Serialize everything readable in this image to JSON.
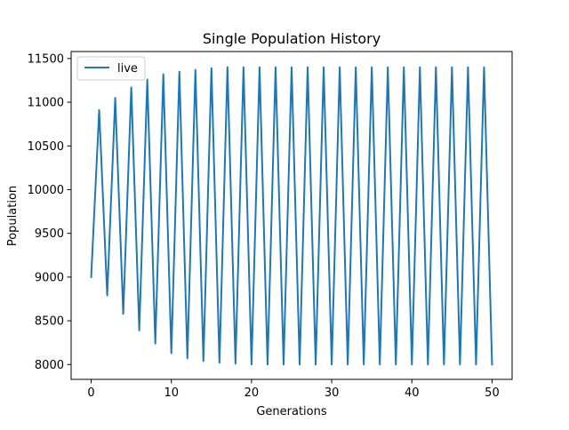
{
  "chart_data": {
    "type": "line",
    "title": "Single Population History",
    "xlabel": "Generations",
    "ylabel": "Population",
    "xlim": [
      -2.5,
      52.5
    ],
    "ylim": [
      7830,
      11580
    ],
    "xticks": [
      0,
      10,
      20,
      30,
      40,
      50
    ],
    "yticks": [
      8000,
      8500,
      9000,
      9500,
      10000,
      10500,
      11000,
      11500
    ],
    "grid": false,
    "legend": {
      "position": "top-left",
      "entries": [
        "live"
      ]
    },
    "series": [
      {
        "name": "live",
        "color": "#1f77b4",
        "x": [
          0,
          1,
          2,
          3,
          4,
          5,
          6,
          7,
          8,
          9,
          10,
          11,
          12,
          13,
          14,
          15,
          16,
          17,
          18,
          19,
          20,
          21,
          22,
          23,
          24,
          25,
          26,
          27,
          28,
          29,
          30,
          31,
          32,
          33,
          34,
          35,
          36,
          37,
          38,
          39,
          40,
          41,
          42,
          43,
          44,
          45,
          46,
          47,
          48,
          49,
          50
        ],
        "values": [
          9000,
          10910,
          8790,
          11050,
          8580,
          11170,
          8390,
          11260,
          8240,
          11320,
          8130,
          11350,
          8070,
          11370,
          8040,
          11390,
          8020,
          11400,
          8010,
          11400,
          8000,
          11400,
          8000,
          11400,
          8000,
          11400,
          8000,
          11400,
          8000,
          11400,
          8000,
          11400,
          8000,
          11400,
          8000,
          11400,
          8000,
          11400,
          8000,
          11400,
          8000,
          11400,
          8000,
          11400,
          8000,
          11400,
          8000,
          11400,
          8000,
          11400,
          8000
        ]
      }
    ]
  }
}
